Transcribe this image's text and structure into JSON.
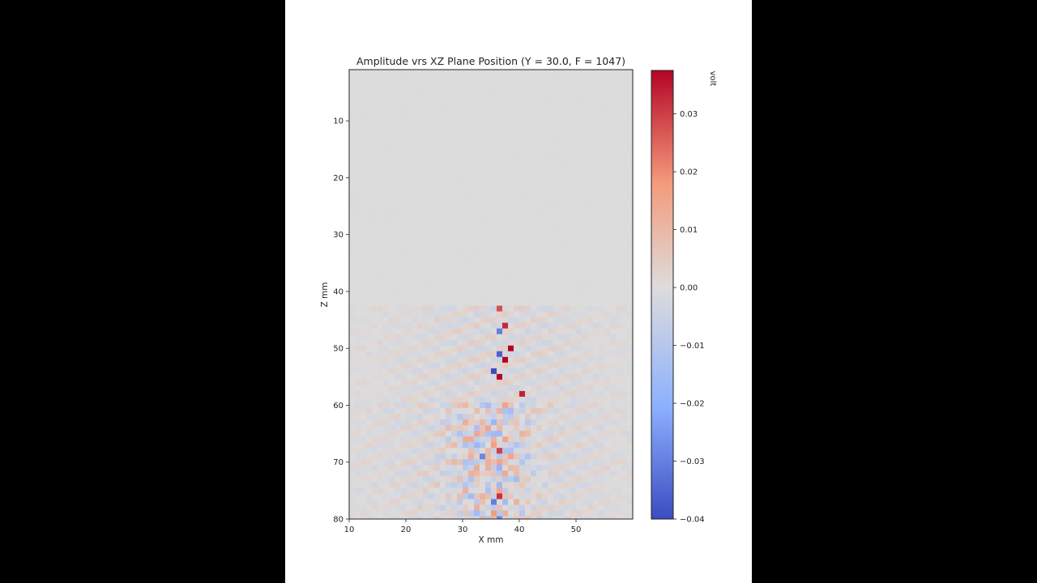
{
  "colors": {
    "background": "#000000",
    "frame": "#ffffff",
    "colormap": "coolwarm",
    "cmap_low": "#3b4cc0",
    "cmap_mid": "#dddcdc",
    "cmap_high": "#b40426"
  },
  "chart_data": {
    "type": "heatmap",
    "title": "Amplitude vrs XZ Plane Position (Y = 30.0, F = 1047)",
    "xlabel": "X mm",
    "ylabel": "Z mm",
    "xlim": [
      10,
      60
    ],
    "ylim": [
      80,
      1
    ],
    "x_ticks": [
      10,
      20,
      30,
      40,
      50
    ],
    "y_ticks": [
      10,
      20,
      30,
      40,
      50,
      60,
      70,
      80
    ],
    "colorbar": {
      "label": "volt",
      "range": [
        -0.04,
        0.0375
      ],
      "ticks": [
        "0.03",
        "0.02",
        "0.01",
        "0.00",
        "−0.01",
        "−0.02",
        "−0.03",
        "−0.04"
      ],
      "tick_values": [
        0.03,
        0.02,
        0.01,
        0.0,
        -0.01,
        -0.02,
        -0.03,
        -0.04
      ]
    },
    "grid": false,
    "field_description": {
      "quiet_region_z": [
        1,
        42
      ],
      "wavefront_start_z": 42.5,
      "wavefront_stripe_period_mm": 2.0,
      "peak_center_x": 36,
      "peak_center_z": 52,
      "peak_amplitude": 0.0375,
      "scatter_region_z": [
        60,
        80
      ],
      "scatter_center_x": 35
    },
    "peak_cells": [
      {
        "x": 36,
        "z": 43,
        "v": 0.028
      },
      {
        "x": 37,
        "z": 46,
        "v": 0.033
      },
      {
        "x": 36,
        "z": 47,
        "v": -0.03
      },
      {
        "x": 38,
        "z": 50,
        "v": 0.0375
      },
      {
        "x": 36,
        "z": 51,
        "v": -0.036
      },
      {
        "x": 37,
        "z": 52,
        "v": 0.0375
      },
      {
        "x": 35,
        "z": 54,
        "v": -0.04
      },
      {
        "x": 36,
        "z": 55,
        "v": 0.0375
      },
      {
        "x": 40,
        "z": 58,
        "v": 0.034
      },
      {
        "x": 36,
        "z": 68,
        "v": 0.03
      },
      {
        "x": 33,
        "z": 69,
        "v": -0.028
      },
      {
        "x": 36,
        "z": 76,
        "v": 0.032
      },
      {
        "x": 35,
        "z": 77,
        "v": -0.03
      },
      {
        "x": 36,
        "z": 80,
        "v": -0.028
      }
    ]
  }
}
